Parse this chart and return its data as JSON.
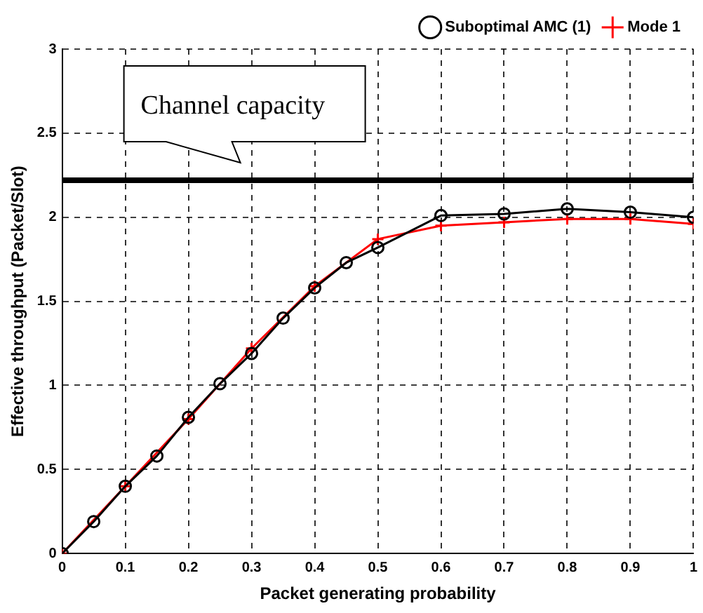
{
  "chart_data": {
    "type": "line",
    "xlabel": "Packet generating probability",
    "ylabel": "Effective throughput (Packet/Slot)",
    "xlim": [
      0,
      1
    ],
    "xticks": [
      0,
      0.1,
      0.2,
      0.3,
      0.4,
      0.5,
      0.6,
      0.7,
      0.8,
      0.9,
      1
    ],
    "ylim": [
      0,
      3
    ],
    "yticks": [
      0,
      0.5,
      1,
      1.5,
      2,
      2.5,
      3
    ],
    "grid": true,
    "legend": "top right",
    "line_style": "solid",
    "series": [
      {
        "name": "Suboptimal AMC (1)",
        "color": "#000000",
        "marker": "circle",
        "x": [
          0,
          0.05,
          0.1,
          0.15,
          0.2,
          0.25,
          0.3,
          0.35,
          0.4,
          0.45,
          0.5,
          0.6,
          0.7,
          0.8,
          0.9,
          1
        ],
        "values": [
          0,
          0.19,
          0.4,
          0.58,
          0.81,
          1.01,
          1.19,
          1.4,
          1.58,
          1.73,
          1.82,
          2.01,
          2.02,
          2.05,
          2.03,
          2.0
        ]
      },
      {
        "name": "Mode 1",
        "color": "#ff0000",
        "marker": "cross",
        "x": [
          0,
          0.1,
          0.2,
          0.3,
          0.4,
          0.5,
          0.6,
          0.7,
          0.8,
          0.9,
          1
        ],
        "values": [
          0,
          0.4,
          0.8,
          1.22,
          1.59,
          1.87,
          1.95,
          1.97,
          1.99,
          1.99,
          1.96
        ]
      }
    ],
    "ref_lines": [
      {
        "axis": "y",
        "value": 2.22,
        "color": "#000000"
      }
    ],
    "annotations": [
      "Channel capacity"
    ]
  }
}
